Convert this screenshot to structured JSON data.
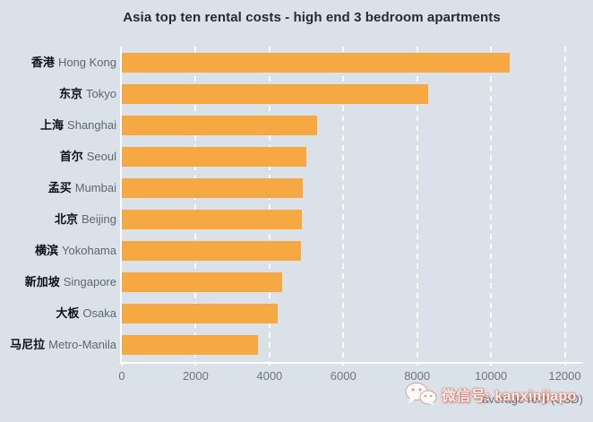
{
  "title": "Asia top ten rental costs - high end 3 bedroom apartments",
  "chart_data": {
    "type": "bar",
    "orientation": "horizontal",
    "title": "Asia top ten rental costs - high end 3 bedroom apartments",
    "xlabel": "average rent (USD)",
    "ylabel": "",
    "xlim": [
      0,
      12500
    ],
    "x_ticks": [
      0,
      2000,
      4000,
      6000,
      8000,
      10000,
      12000
    ],
    "grid": "vertical white dashed gridlines",
    "legend": "none",
    "bars": [
      {
        "label_cn": "香港",
        "label_en": "Hong Kong",
        "value": 10500
      },
      {
        "label_cn": "东京",
        "label_en": "Tokyo",
        "value": 8300
      },
      {
        "label_cn": "上海",
        "label_en": "Shanghai",
        "value": 5300
      },
      {
        "label_cn": "首尔",
        "label_en": "Seoul",
        "value": 5000
      },
      {
        "label_cn": "孟买",
        "label_en": "Mumbai",
        "value": 4900
      },
      {
        "label_cn": "北京",
        "label_en": "Beijing",
        "value": 4880
      },
      {
        "label_cn": "横滨",
        "label_en": "Yokohama",
        "value": 4850
      },
      {
        "label_cn": "新加坡",
        "label_en": "Singapore",
        "value": 4350
      },
      {
        "label_cn": "大板",
        "label_en": "Osaka",
        "value": 4230
      },
      {
        "label_cn": "马尼拉",
        "label_en": "Metro-Manila",
        "value": 3700
      }
    ]
  },
  "colors": {
    "background": "#dae1e8",
    "bar": "#f6a943",
    "title_text": "#232b33",
    "label_cn_text": "#0c1218",
    "label_en_text": "#5d6872",
    "tick_text": "#6b7681",
    "axis_line": "#ffffff",
    "watermark_red": "#ce4d38"
  },
  "watermark": {
    "icon": "wechat-icon",
    "text": "微信号: kanxinjiapo"
  }
}
